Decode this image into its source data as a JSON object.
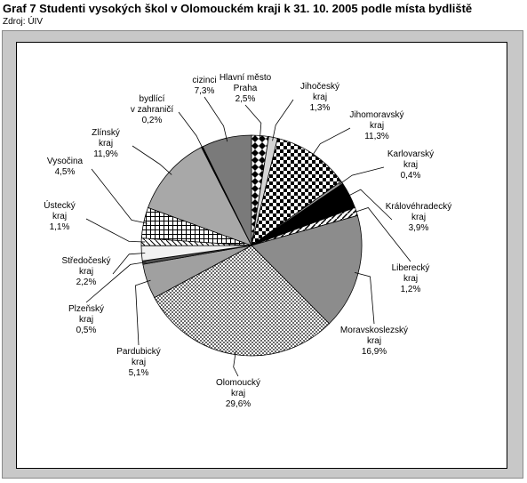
{
  "header": {
    "title": "Graf 7 Studenti vysokých škol v Olomouckém kraji k 31. 10. 2005 podle místa bydliště",
    "source": "Zdroj: ÚIV"
  },
  "chart_data": {
    "type": "pie",
    "title": "Graf 7 Studenti vysokých škol v Olomouckém kraji k 31. 10. 2005 podle místa bydliště",
    "legend": "none",
    "slices": [
      {
        "name": "Hlavní město Praha",
        "lines": [
          "Hlavní město",
          "Praha"
        ],
        "label": "2,5%",
        "value": 2.5,
        "fill": "diamond"
      },
      {
        "name": "Jihočeský kraj",
        "lines": [
          "Jihočeský",
          "kraj"
        ],
        "label": "1,3%",
        "value": 1.3,
        "fill": "#d4d4d4"
      },
      {
        "name": "Jihomoravský kraj",
        "lines": [
          "Jihomoravský",
          "kraj"
        ],
        "label": "11,3%",
        "value": 11.3,
        "fill": "checker"
      },
      {
        "name": "Karlovarský kraj",
        "lines": [
          "Karlovarský",
          "kraj"
        ],
        "label": "0,4%",
        "value": 0.4,
        "fill": "#9a9a9a"
      },
      {
        "name": "Královéhradecký kraj",
        "lines": [
          "Královéhradecký",
          "kraj"
        ],
        "label": "3,9%",
        "value": 3.9,
        "fill": "#000000"
      },
      {
        "name": "Liberecký kraj",
        "lines": [
          "Liberecký",
          "kraj"
        ],
        "label": "1,2%",
        "value": 1.2,
        "fill": "diag"
      },
      {
        "name": "Moravskoslezský kraj",
        "lines": [
          "Moravskoslezský",
          "kraj"
        ],
        "label": "16,9%",
        "value": 16.9,
        "fill": "#8c8c8c"
      },
      {
        "name": "Olomoucký kraj",
        "lines": [
          "Olomoucký",
          "kraj"
        ],
        "label": "29,6%",
        "value": 29.6,
        "fill": "fine"
      },
      {
        "name": "Pardubický kraj",
        "lines": [
          "Pardubický",
          "kraj"
        ],
        "label": "5,1%",
        "value": 5.1,
        "fill": "#a0a0a0"
      },
      {
        "name": "Plzeňský kraj",
        "lines": [
          "Plzeňský",
          "kraj"
        ],
        "label": "0,5%",
        "value": 0.5,
        "fill": "#505050"
      },
      {
        "name": "Středočeský kraj",
        "lines": [
          "Středočeský",
          "kraj"
        ],
        "label": "2,2%",
        "value": 2.2,
        "fill": "#f2f2f2"
      },
      {
        "name": "Ústecký kraj",
        "lines": [
          "Ústecký",
          "kraj"
        ],
        "label": "1,1%",
        "value": 1.1,
        "fill": "diag2"
      },
      {
        "name": "Vysočina",
        "lines": [
          "Vysočina"
        ],
        "label": "4,5%",
        "value": 4.5,
        "fill": "grid"
      },
      {
        "name": "Zlínský kraj",
        "lines": [
          "Zlínský",
          "kraj"
        ],
        "label": "11,9%",
        "value": 11.9,
        "fill": "#a8a8a8"
      },
      {
        "name": "bydlící v zahraničí",
        "lines": [
          "bydlící",
          "v zahraničí"
        ],
        "label": "0,2%",
        "value": 0.2,
        "fill": "#000000"
      },
      {
        "name": "cizinci",
        "lines": [
          "cizinci"
        ],
        "label": "7,3%",
        "value": 7.3,
        "fill": "#7a7a7a"
      }
    ]
  }
}
